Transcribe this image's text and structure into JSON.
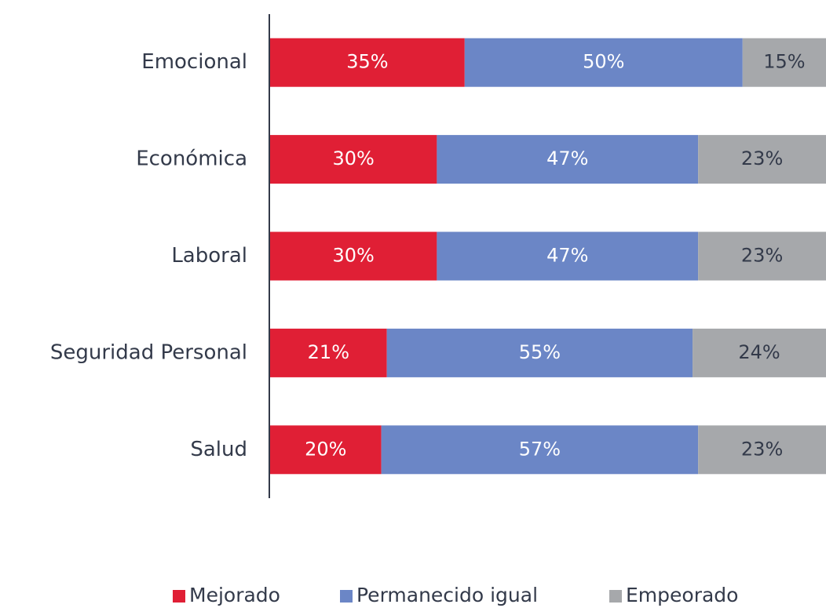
{
  "chart_data": {
    "type": "stacked-bar-horizontal",
    "categories": [
      "Emocional",
      "Económica",
      "Laboral",
      "Seguridad Personal",
      "Salud"
    ],
    "series": [
      {
        "name": "Mejorado",
        "color": "#e01f35",
        "values": [
          35,
          30,
          30,
          21,
          20
        ],
        "value_labels": [
          "35%",
          "30%",
          "30%",
          "21%",
          "20%"
        ]
      },
      {
        "name": "Permanecido igual",
        "color": "#6b86c6",
        "values": [
          50,
          47,
          47,
          55,
          57
        ],
        "value_labels": [
          "50%",
          "47%",
          "47%",
          "55%",
          "57%"
        ]
      },
      {
        "name": "Empeorado",
        "color": "#a6a8ab",
        "values": [
          15,
          23,
          23,
          24,
          23
        ],
        "value_labels": [
          "15%",
          "23%",
          "23%",
          "24%",
          "23%"
        ]
      }
    ],
    "xlim": [
      0,
      100
    ],
    "legend": "bottom"
  }
}
